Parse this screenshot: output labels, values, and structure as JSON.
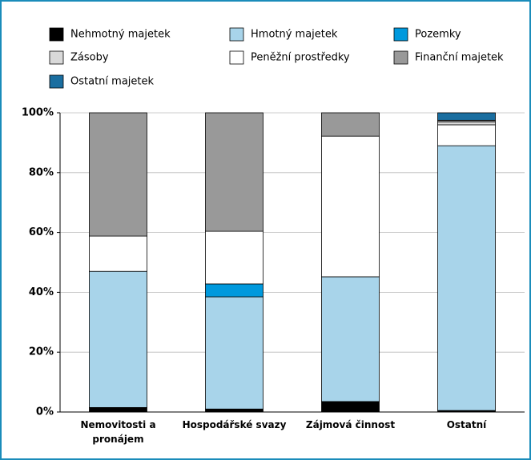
{
  "chart_data": {
    "type": "stacked_bar",
    "categories": [
      "Nemovitosti a pronájem",
      "Hospodářské svazy",
      "Zájmová činnost",
      "Ostatní"
    ],
    "series": [
      {
        "name": "Nehmotný majetek",
        "color": "#000000",
        "values": [
          1.5,
          1,
          3.5,
          0.5
        ]
      },
      {
        "name": "Hmotný majetek",
        "color": "#a8d4ea",
        "values": [
          45.5,
          37.5,
          41.7,
          88.5
        ]
      },
      {
        "name": "Pozemky",
        "color": "#0099dd",
        "values": [
          0,
          4.3,
          0,
          0
        ]
      },
      {
        "name": "Zásoby",
        "color": "#d9d9d9",
        "values": [
          0,
          0,
          0,
          1
        ]
      },
      {
        "name": "Peněžní prostředky",
        "color": "#ffffff",
        "values": [
          11.8,
          17.6,
          47,
          7
        ]
      },
      {
        "name": "Finanční majetek",
        "color": "#999999",
        "values": [
          41.2,
          39.6,
          7.8,
          0.5
        ]
      },
      {
        "name": "Ostatní majetek",
        "color": "#1a6ea0",
        "values": [
          0,
          0,
          0,
          2.5
        ]
      }
    ],
    "ylim": [
      0,
      100
    ],
    "yticks": [
      {
        "value": 0,
        "label": "0%"
      },
      {
        "value": 20,
        "label": "20%"
      },
      {
        "value": 40,
        "label": "40%"
      },
      {
        "value": 60,
        "label": "60%"
      },
      {
        "value": 80,
        "label": "80%"
      },
      {
        "value": 100,
        "label": "100%"
      }
    ],
    "grid": true
  }
}
